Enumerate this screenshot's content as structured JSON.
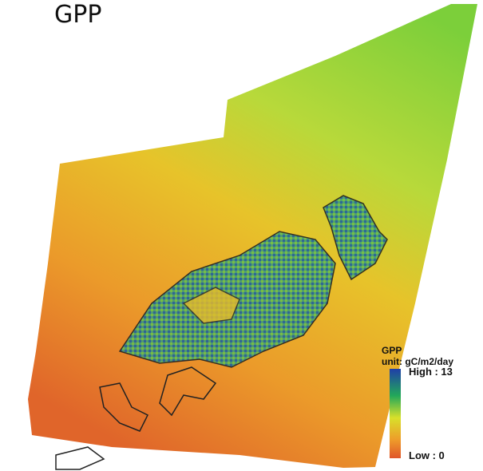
{
  "title": "GPP",
  "legend": {
    "title": "GPP",
    "unit": "unit: gC/m2/day",
    "high": "High : 13",
    "low": "Low : 0"
  }
}
